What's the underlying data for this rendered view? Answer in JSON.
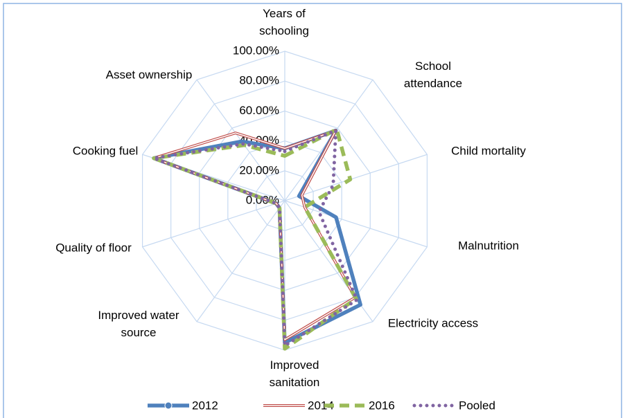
{
  "chart_data": {
    "type": "radar",
    "categories": [
      "Years of schooling",
      "School attendance",
      "Child mortality",
      "Malnutrition",
      "Electricity access",
      "Improved sanitation",
      "Improved water source",
      "Quality of floor",
      "Cooking fuel",
      "Asset ownership"
    ],
    "series": [
      {
        "name": "2012",
        "color": "#4f81bd",
        "values": [
          35,
          58,
          10,
          36,
          86,
          95,
          6,
          6,
          92,
          49
        ]
      },
      {
        "name": "2014",
        "color": "#c0504d",
        "values": [
          35,
          58,
          12,
          14,
          80,
          93,
          6,
          6,
          92,
          56
        ]
      },
      {
        "name": "2016",
        "color": "#9bbb59",
        "values": [
          30,
          59,
          46,
          14,
          81,
          99,
          6,
          6,
          92,
          46
        ]
      },
      {
        "name": "Pooled",
        "color": "#8064a2",
        "values": [
          33,
          58,
          34,
          24,
          82,
          97,
          6,
          6,
          92,
          47
        ]
      }
    ],
    "ylim": [
      0,
      100
    ],
    "yticks": [
      {
        "value": 0,
        "label": "0.00%"
      },
      {
        "value": 20,
        "label": "20.00%"
      },
      {
        "value": 40,
        "label": "40.00%"
      },
      {
        "value": 60,
        "label": "60.00%"
      },
      {
        "value": 80,
        "label": "80.00%"
      },
      {
        "value": 100,
        "label": "100.00%"
      }
    ],
    "grid": true,
    "legend": "bottom"
  }
}
